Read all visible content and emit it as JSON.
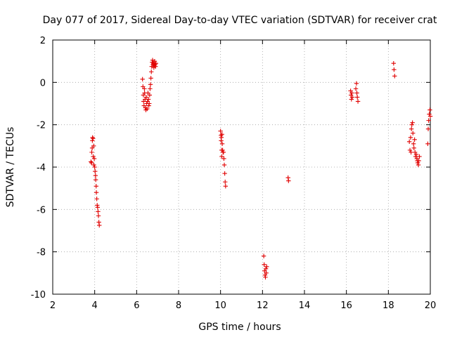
{
  "chart_data": {
    "type": "scatter",
    "title": "Day 077 of 2017, Sidereal Day-to-day VTEC variation (SDTVAR) for receiver crat",
    "xlabel": "GPS time / hours",
    "ylabel": "SDTVAR / TECUs",
    "xlim": [
      2,
      20
    ],
    "ylim": [
      -10,
      2
    ],
    "xticks": [
      2,
      4,
      6,
      8,
      10,
      12,
      14,
      16,
      18,
      20
    ],
    "yticks": [
      -10,
      -8,
      -6,
      -4,
      -2,
      0,
      2
    ],
    "xtick_labels": [
      "2",
      "4",
      "6",
      "8",
      "10",
      "12",
      "14",
      "16",
      "18",
      "20"
    ],
    "ytick_labels": [
      "-10",
      "-8",
      "-6",
      "-4",
      "-2",
      "0",
      "2"
    ],
    "grid": true,
    "marker": "+",
    "color": "#e00000",
    "series": [
      {
        "name": "SDTVAR",
        "points": [
          [
            3.82,
            -3.75
          ],
          [
            3.85,
            -3.8
          ],
          [
            3.86,
            -3.3
          ],
          [
            3.88,
            -3.1
          ],
          [
            3.89,
            -2.75
          ],
          [
            3.9,
            -2.6
          ],
          [
            3.92,
            -2.65
          ],
          [
            3.93,
            -3.5
          ],
          [
            3.95,
            -3.0
          ],
          [
            3.96,
            -3.9
          ],
          [
            3.98,
            -3.6
          ],
          [
            4.0,
            -4.0
          ],
          [
            4.02,
            -4.2
          ],
          [
            4.04,
            -4.4
          ],
          [
            4.05,
            -4.6
          ],
          [
            4.07,
            -4.9
          ],
          [
            4.08,
            -5.2
          ],
          [
            4.1,
            -5.5
          ],
          [
            4.12,
            -5.8
          ],
          [
            4.14,
            -5.9
          ],
          [
            4.16,
            -6.1
          ],
          [
            4.18,
            -6.3
          ],
          [
            4.2,
            -6.6
          ],
          [
            4.22,
            -6.75
          ],
          [
            6.28,
            0.15
          ],
          [
            6.3,
            -0.2
          ],
          [
            6.32,
            -0.6
          ],
          [
            6.33,
            -0.9
          ],
          [
            6.35,
            -1.1
          ],
          [
            6.37,
            -0.3
          ],
          [
            6.38,
            -0.5
          ],
          [
            6.4,
            -0.8
          ],
          [
            6.42,
            -1.2
          ],
          [
            6.44,
            -1.3
          ],
          [
            6.46,
            -0.7
          ],
          [
            6.48,
            -1.0
          ],
          [
            6.5,
            -1.25
          ],
          [
            6.52,
            -0.9
          ],
          [
            6.54,
            -0.5
          ],
          [
            6.56,
            -0.8
          ],
          [
            6.58,
            -1.1
          ],
          [
            6.6,
            -1.0
          ],
          [
            6.62,
            -0.6
          ],
          [
            6.64,
            -0.3
          ],
          [
            6.66,
            -0.1
          ],
          [
            6.68,
            0.2
          ],
          [
            6.7,
            0.5
          ],
          [
            6.72,
            0.75
          ],
          [
            6.74,
            0.95
          ],
          [
            6.76,
            1.05
          ],
          [
            6.78,
            0.85
          ],
          [
            6.8,
            0.9
          ],
          [
            6.82,
            0.7
          ],
          [
            6.84,
            0.8
          ],
          [
            6.86,
            1.0
          ],
          [
            6.88,
            0.85
          ],
          [
            6.9,
            0.75
          ],
          [
            6.92,
            0.9
          ],
          [
            10.0,
            -2.3
          ],
          [
            10.02,
            -2.5
          ],
          [
            10.03,
            -2.75
          ],
          [
            10.04,
            -2.6
          ],
          [
            10.05,
            -3.2
          ],
          [
            10.06,
            -3.5
          ],
          [
            10.07,
            -2.45
          ],
          [
            10.08,
            -2.9
          ],
          [
            10.1,
            -3.2
          ],
          [
            10.12,
            -3.3
          ],
          [
            10.14,
            -3.3
          ],
          [
            10.16,
            -3.6
          ],
          [
            10.18,
            -3.9
          ],
          [
            10.2,
            -4.3
          ],
          [
            10.22,
            -4.7
          ],
          [
            10.24,
            -4.9
          ],
          [
            12.06,
            -8.2
          ],
          [
            12.08,
            -8.6
          ],
          [
            12.1,
            -8.9
          ],
          [
            12.12,
            -9.1
          ],
          [
            12.14,
            -9.2
          ],
          [
            12.16,
            -8.8
          ],
          [
            12.18,
            -9.0
          ],
          [
            12.2,
            -8.7
          ],
          [
            13.22,
            -4.5
          ],
          [
            13.24,
            -4.65
          ],
          [
            16.2,
            -0.4
          ],
          [
            16.22,
            -0.6
          ],
          [
            16.24,
            -0.8
          ],
          [
            16.26,
            -0.5
          ],
          [
            16.28,
            -0.7
          ],
          [
            16.45,
            -0.3
          ],
          [
            16.48,
            -0.05
          ],
          [
            16.5,
            -0.5
          ],
          [
            16.52,
            -0.7
          ],
          [
            16.55,
            -0.9
          ],
          [
            18.25,
            0.9
          ],
          [
            18.27,
            0.6
          ],
          [
            18.3,
            0.3
          ],
          [
            19.0,
            -2.8
          ],
          [
            19.03,
            -3.2
          ],
          [
            19.06,
            -2.6
          ],
          [
            19.08,
            -3.3
          ],
          [
            19.1,
            -2.2
          ],
          [
            19.12,
            -2.0
          ],
          [
            19.15,
            -1.9
          ],
          [
            19.17,
            -2.4
          ],
          [
            19.2,
            -2.9
          ],
          [
            19.22,
            -3.1
          ],
          [
            19.25,
            -2.7
          ],
          [
            19.27,
            -3.3
          ],
          [
            19.3,
            -3.5
          ],
          [
            19.33,
            -3.4
          ],
          [
            19.36,
            -3.6
          ],
          [
            19.38,
            -3.7
          ],
          [
            19.4,
            -3.8
          ],
          [
            19.43,
            -3.9
          ],
          [
            19.45,
            -3.7
          ],
          [
            19.48,
            -3.5
          ],
          [
            19.88,
            -2.9
          ],
          [
            19.9,
            -2.2
          ],
          [
            19.92,
            -1.8
          ],
          [
            19.95,
            -1.5
          ],
          [
            19.98,
            -1.3
          ],
          [
            20.0,
            -1.6
          ]
        ]
      }
    ]
  }
}
